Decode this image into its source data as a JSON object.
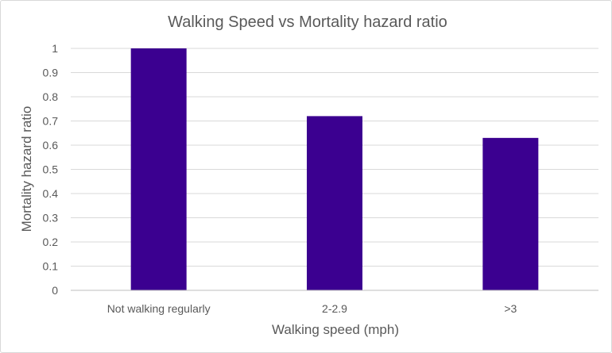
{
  "chart_data": {
    "type": "bar",
    "title": "Walking Speed vs Mortality hazard ratio",
    "xlabel": "Walking speed (mph)",
    "ylabel": "Mortality hazard ratio",
    "categories": [
      "Not walking regularly",
      "2-2.9",
      ">3"
    ],
    "values": [
      1.0,
      0.72,
      0.63
    ],
    "ylim": [
      0,
      1
    ],
    "yticks": [
      "0",
      "0.1",
      "0.2",
      "0.3",
      "0.4",
      "0.5",
      "0.6",
      "0.7",
      "0.8",
      "0.9",
      "1"
    ],
    "grid": true,
    "legend": "none",
    "bar_color": "#3b0090"
  }
}
